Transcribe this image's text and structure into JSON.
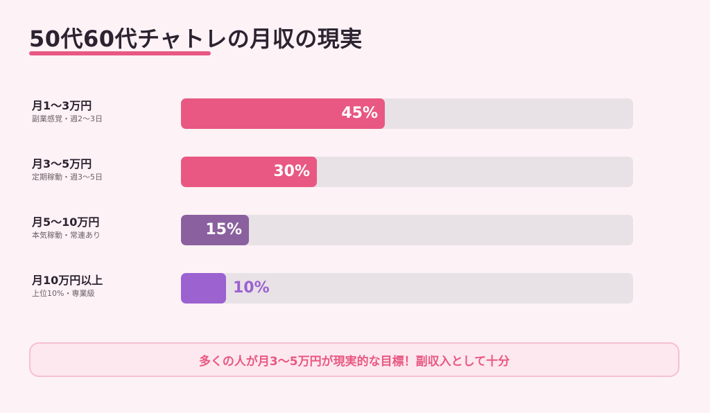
{
  "title": "50代60代チャトレの月収の現実",
  "chart_data": {
    "type": "bar",
    "orientation": "horizontal",
    "categories": [
      "月1〜3万円",
      "月3〜5万円",
      "月5〜10万円",
      "月10万円以上"
    ],
    "subcategories": [
      "副業感覚・週2〜3日",
      "定期稼動・週3〜5日",
      "本気稼動・常連あり",
      "上位10%・専業級"
    ],
    "values": [
      45,
      30,
      15,
      10
    ],
    "value_labels": [
      "45%",
      "30%",
      "15%",
      "10%"
    ],
    "xlim": [
      0,
      100
    ],
    "colors": [
      "#e85882",
      "#e85882",
      "#8a609e",
      "#9b62d0"
    ],
    "track_color": "#e8e2e6"
  },
  "note": "多くの人が月3〜5万円が現実的な目標！副収入として十分"
}
